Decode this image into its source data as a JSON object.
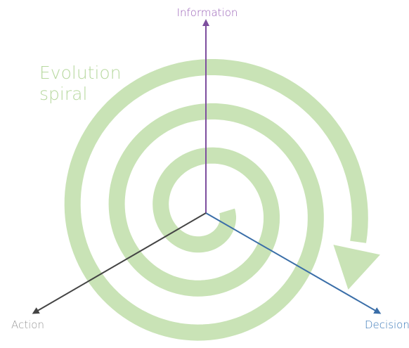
{
  "axes": {
    "information": "Information",
    "decision": "Decision",
    "action": "Action"
  },
  "spiral_label": [
    "Evolution",
    "spiral"
  ]
}
